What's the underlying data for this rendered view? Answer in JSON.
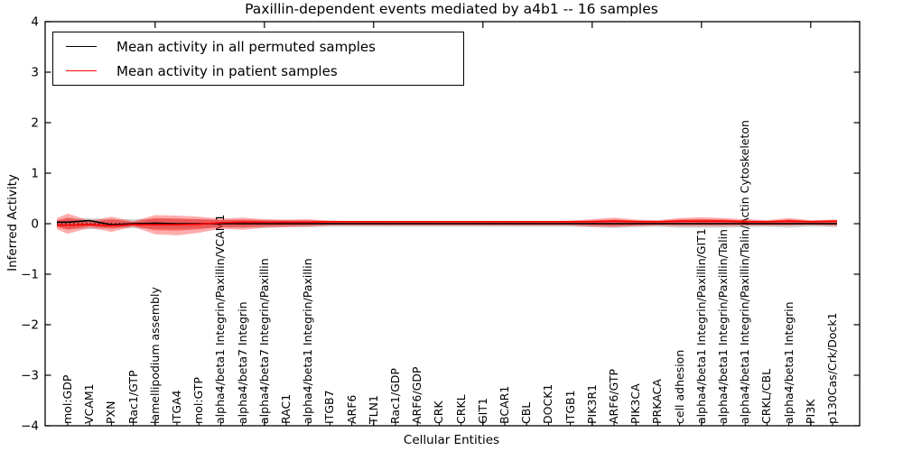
{
  "chart_data": {
    "type": "line",
    "title": "Paxillin-dependent events mediated by a4b1 -- 16 samples",
    "xlabel": "Cellular Entities",
    "ylabel": "Inferred Activity",
    "ylim": [
      -4,
      4
    ],
    "y_ticks": [
      4,
      3,
      2,
      1,
      0,
      -1,
      -2,
      -3,
      -4
    ],
    "y_tick_labels": [
      "4",
      "3",
      "2",
      "1",
      "0",
      "−1",
      "−2",
      "−3",
      "−4"
    ],
    "x_major_ticks": [
      5,
      10,
      15,
      20,
      25,
      30,
      35
    ],
    "grid": false,
    "legend_position": "upper left",
    "categories": [
      "mol:GDP",
      "VCAM1",
      "PXN",
      "Rac1/GTP",
      "lamellipodium assembly",
      "ITGA4",
      "mol:GTP",
      "alpha4/beta1 Integrin/Paxillin/VCAM1",
      "alpha4/beta7 Integrin",
      "alpha4/beta7 Integrin/Paxillin",
      "RAC1",
      "alpha4/beta1 Integrin/Paxillin",
      "ITGB7",
      "ARF6",
      "TLN1",
      "Rac1/GDP",
      "ARF6/GDP",
      "CRK",
      "CRKL",
      "GIT1",
      "BCAR1",
      "CBL",
      "DOCK1",
      "ITGB1",
      "PIK3R1",
      "ARF6/GTP",
      "PIK3CA",
      "PRKACA",
      "cell adhesion",
      "alpha4/beta1 Integrin/Paxillin/GIT1",
      "alpha4/beta1 Integrin/Paxillin/Talin",
      "alpha4/beta1 Integrin/Paxillin/Talin/Actin Cytoskeleton",
      "CRKL/CBL",
      "alpha4/beta1 Integrin",
      "PI3K",
      "p130Cas/Crk/Dock1"
    ],
    "series": [
      {
        "name": "Mean activity in all permuted samples",
        "color": "#000000",
        "values": [
          0.03,
          0.06,
          -0.02,
          0.0,
          0.01,
          0.0,
          0.0,
          0.0,
          0.0,
          0.0,
          0.0,
          0.0,
          0.0,
          0.0,
          0.0,
          0.0,
          0.0,
          0.0,
          0.0,
          0.0,
          0.0,
          0.0,
          0.0,
          0.0,
          0.0,
          0.0,
          0.0,
          0.0,
          0.0,
          0.0,
          0.0,
          0.0,
          0.0,
          0.0,
          0.0,
          0.0
        ]
      },
      {
        "name": "Mean activity in patient samples",
        "color": "#ff0000",
        "values": [
          -0.03,
          -0.02,
          -0.04,
          -0.02,
          -0.02,
          -0.02,
          -0.01,
          0.02,
          0.03,
          0.03,
          0.03,
          0.03,
          0.04,
          0.04,
          0.04,
          0.04,
          0.04,
          0.04,
          0.04,
          0.04,
          0.04,
          0.04,
          0.04,
          0.04,
          0.04,
          0.05,
          0.04,
          0.04,
          0.05,
          0.05,
          0.05,
          0.04,
          0.04,
          0.05,
          0.04,
          0.05
        ]
      }
    ],
    "bands": [
      {
        "name": "permuted-spread",
        "color": "#808080",
        "opacity": 0.35,
        "upper": [
          0.1,
          0.11,
          0.08,
          0.09,
          0.1,
          0.1,
          0.09,
          0.08,
          0.08,
          0.08,
          0.07,
          0.07,
          0.06,
          0.06,
          0.06,
          0.06,
          0.06,
          0.06,
          0.06,
          0.06,
          0.06,
          0.06,
          0.06,
          0.06,
          0.07,
          0.08,
          0.07,
          0.06,
          0.08,
          0.08,
          0.08,
          0.07,
          0.06,
          0.08,
          0.06,
          0.07
        ],
        "lower": [
          -0.1,
          -0.11,
          -0.08,
          -0.09,
          -0.1,
          -0.1,
          -0.09,
          -0.08,
          -0.08,
          -0.08,
          -0.07,
          -0.07,
          -0.06,
          -0.06,
          -0.06,
          -0.06,
          -0.06,
          -0.06,
          -0.06,
          -0.06,
          -0.06,
          -0.06,
          -0.06,
          -0.06,
          -0.07,
          -0.08,
          -0.07,
          -0.06,
          -0.08,
          -0.08,
          -0.08,
          -0.07,
          -0.06,
          -0.08,
          -0.06,
          -0.07
        ]
      },
      {
        "name": "patient-spread-outer",
        "color": "#ff0000",
        "opacity": 0.32,
        "upper": [
          0.2,
          0.06,
          0.14,
          0.05,
          0.17,
          0.16,
          0.14,
          0.1,
          0.12,
          0.09,
          0.08,
          0.09,
          0.06,
          0.05,
          0.05,
          0.05,
          0.05,
          0.05,
          0.05,
          0.05,
          0.05,
          0.05,
          0.05,
          0.06,
          0.09,
          0.12,
          0.08,
          0.07,
          0.11,
          0.13,
          0.11,
          0.09,
          0.07,
          0.11,
          0.07,
          0.08
        ],
        "lower": [
          -0.2,
          -0.08,
          -0.16,
          -0.06,
          -0.21,
          -0.23,
          -0.18,
          -0.1,
          -0.12,
          -0.08,
          -0.07,
          -0.06,
          -0.04,
          -0.04,
          -0.04,
          -0.04,
          -0.04,
          -0.04,
          -0.04,
          -0.04,
          -0.04,
          -0.04,
          -0.04,
          -0.04,
          -0.06,
          -0.07,
          -0.05,
          -0.04,
          -0.05,
          -0.05,
          -0.05,
          -0.04,
          -0.04,
          -0.04,
          -0.03,
          -0.04
        ]
      },
      {
        "name": "patient-spread-inner",
        "color": "#ff0000",
        "opacity": 0.38,
        "upper": [
          0.12,
          0.03,
          0.09,
          0.03,
          0.11,
          0.1,
          0.09,
          0.07,
          0.08,
          0.06,
          0.06,
          0.06,
          0.05,
          0.04,
          0.04,
          0.04,
          0.04,
          0.04,
          0.04,
          0.04,
          0.04,
          0.04,
          0.04,
          0.05,
          0.06,
          0.08,
          0.06,
          0.05,
          0.08,
          0.09,
          0.08,
          0.06,
          0.05,
          0.08,
          0.05,
          0.06
        ],
        "lower": [
          -0.12,
          -0.05,
          -0.1,
          -0.04,
          -0.13,
          -0.14,
          -0.11,
          -0.06,
          -0.07,
          -0.05,
          -0.04,
          -0.03,
          -0.02,
          -0.02,
          -0.02,
          -0.02,
          -0.02,
          -0.02,
          -0.02,
          -0.02,
          -0.02,
          -0.02,
          -0.02,
          -0.02,
          -0.03,
          -0.04,
          -0.03,
          -0.02,
          -0.02,
          -0.02,
          -0.02,
          -0.02,
          -0.02,
          -0.02,
          -0.01,
          -0.02
        ]
      }
    ],
    "zero_line": {
      "y": 0,
      "style": "dotted",
      "color": "#000000"
    }
  },
  "legend": {
    "items": [
      {
        "label": "Mean activity in all permuted samples",
        "color": "#000000"
      },
      {
        "label": "Mean activity in patient samples",
        "color": "#ff0000"
      }
    ]
  }
}
